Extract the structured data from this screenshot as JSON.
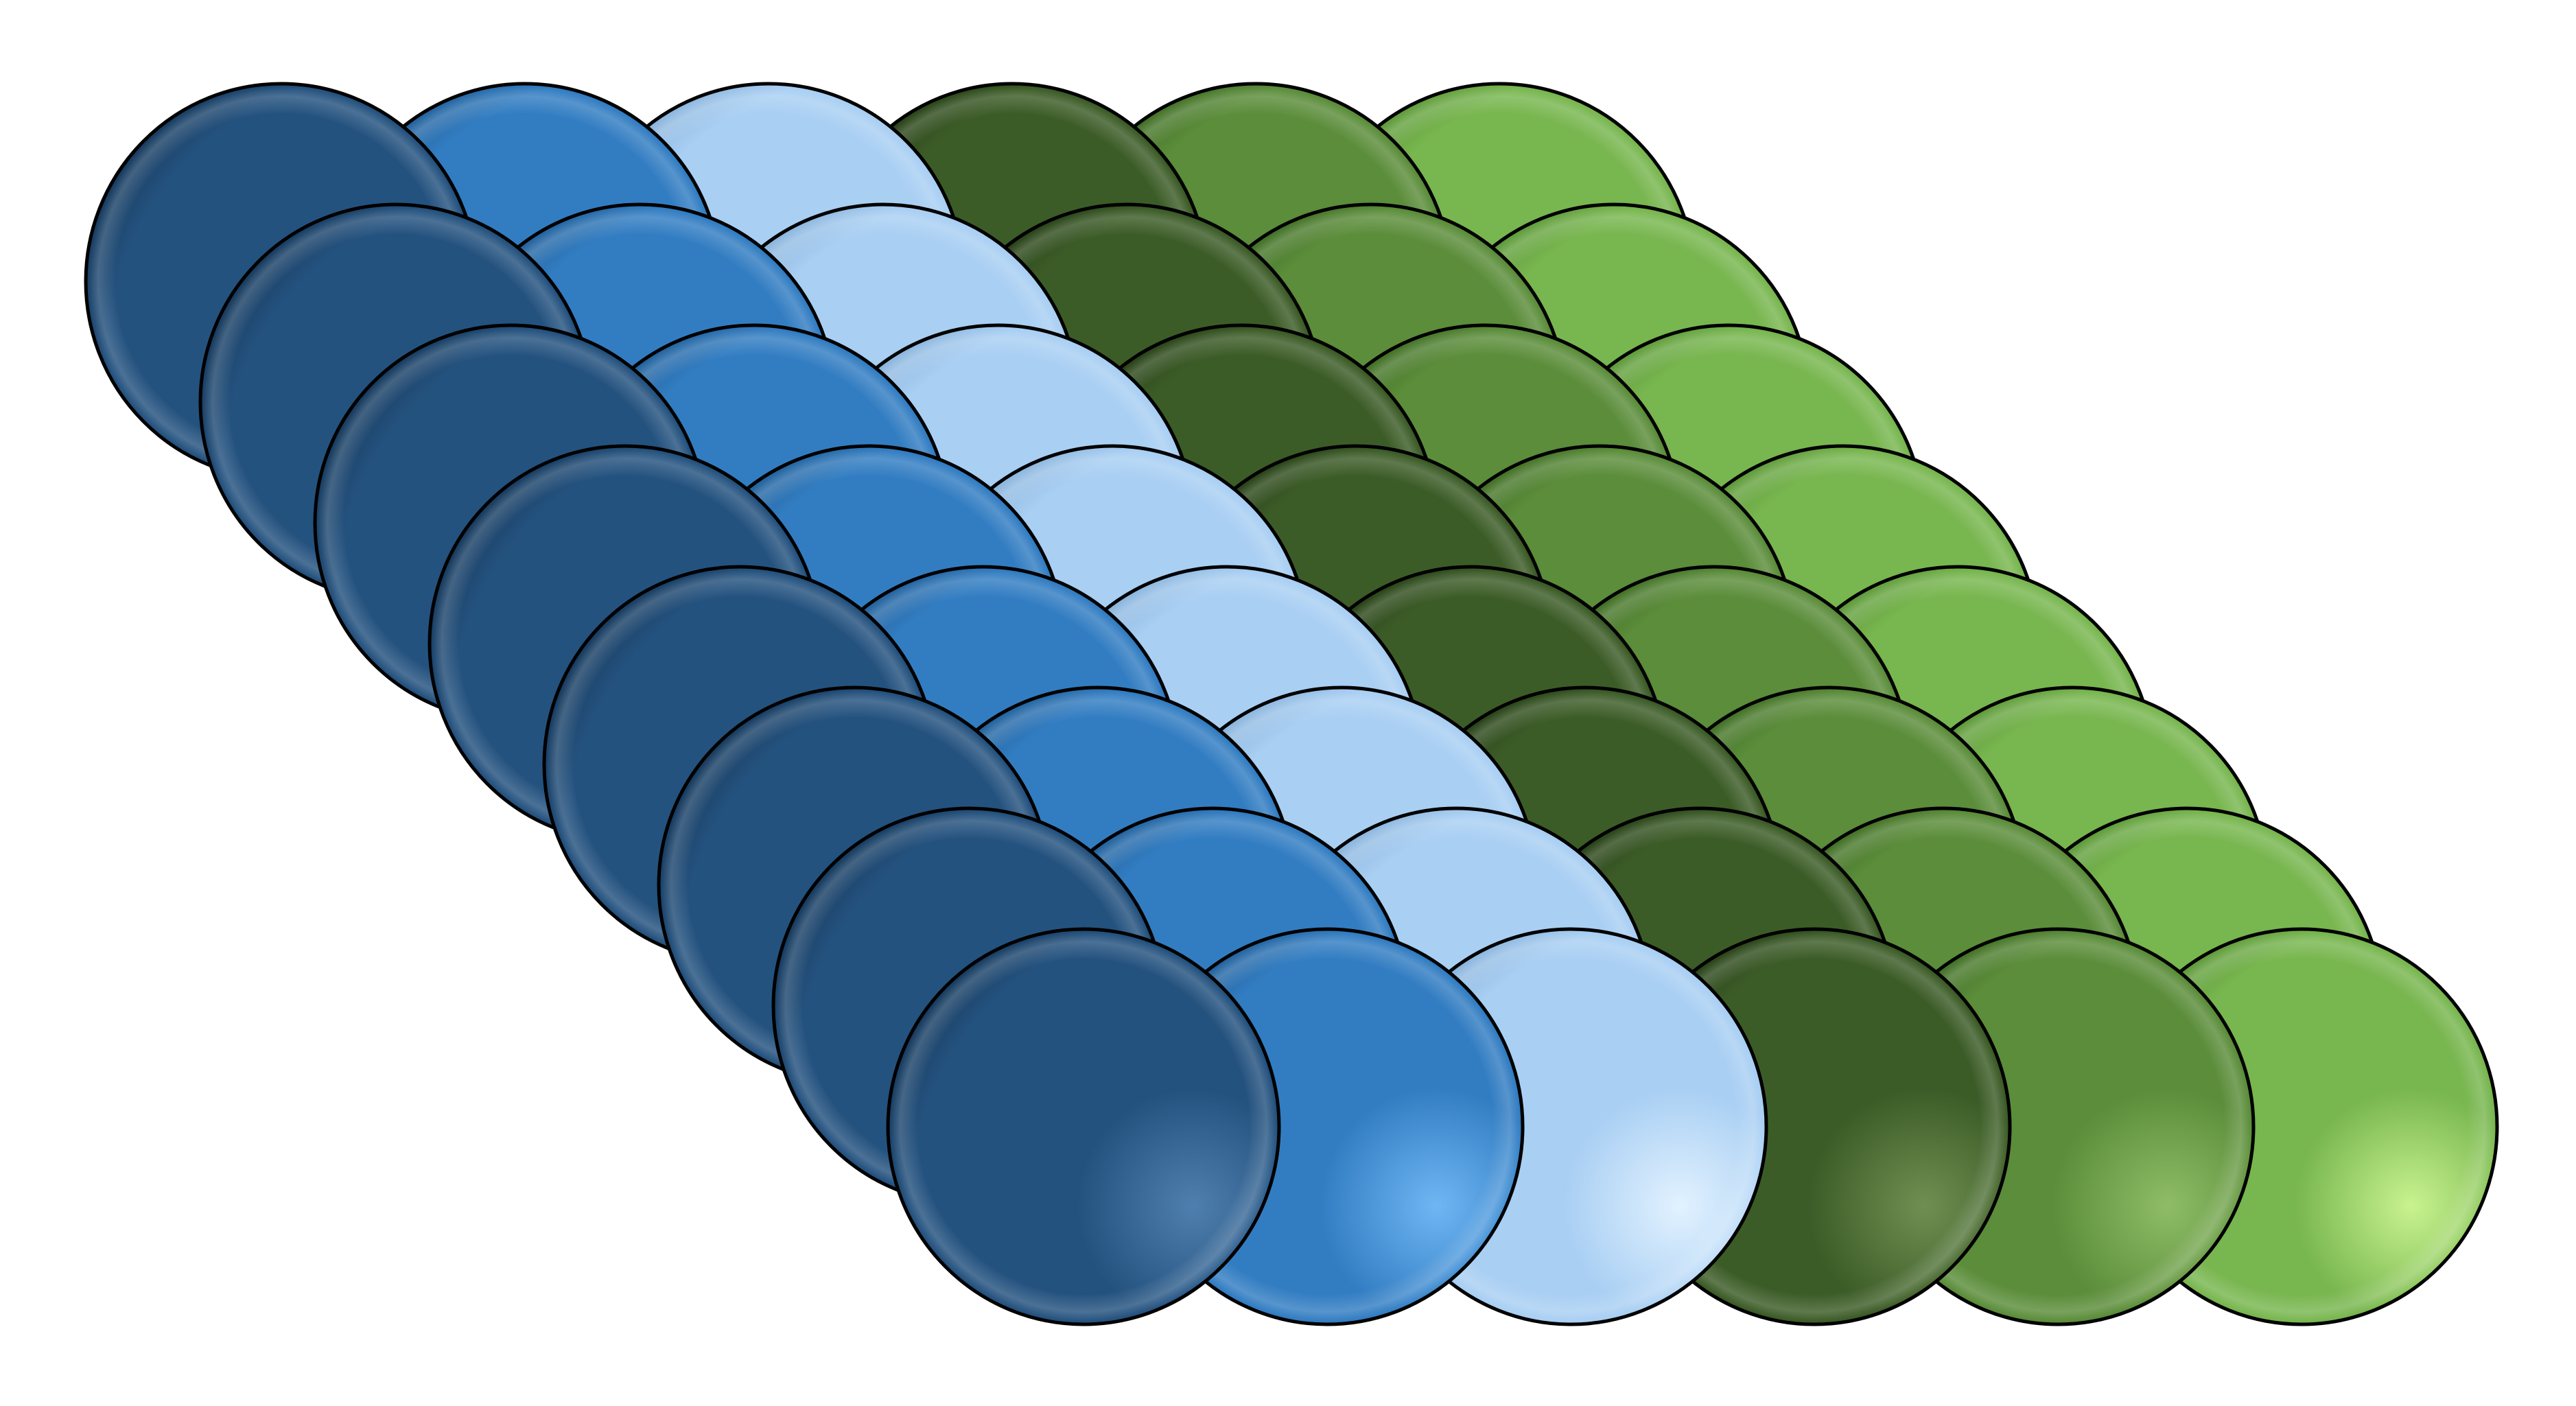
{
  "diagram": {
    "rows": 8,
    "columns": 6,
    "columns_colors": [
      {
        "base": "#24527f",
        "dark": "#173a5c",
        "light": "#4f7fae"
      },
      {
        "base": "#327dc2",
        "dark": "#225e96",
        "light": "#6fb6f4"
      },
      {
        "base": "#a9cff3",
        "dark": "#86b0d8",
        "light": "#e2f2ff"
      },
      {
        "base": "#3c5c27",
        "dark": "#273f18",
        "light": "#6f8f52"
      },
      {
        "base": "#5b8d3a",
        "dark": "#3f6b25",
        "light": "#8fbd67"
      },
      {
        "base": "#78b64f",
        "dark": "#5b9538",
        "light": "#c9f38f"
      }
    ],
    "outline_color": "#000000"
  }
}
